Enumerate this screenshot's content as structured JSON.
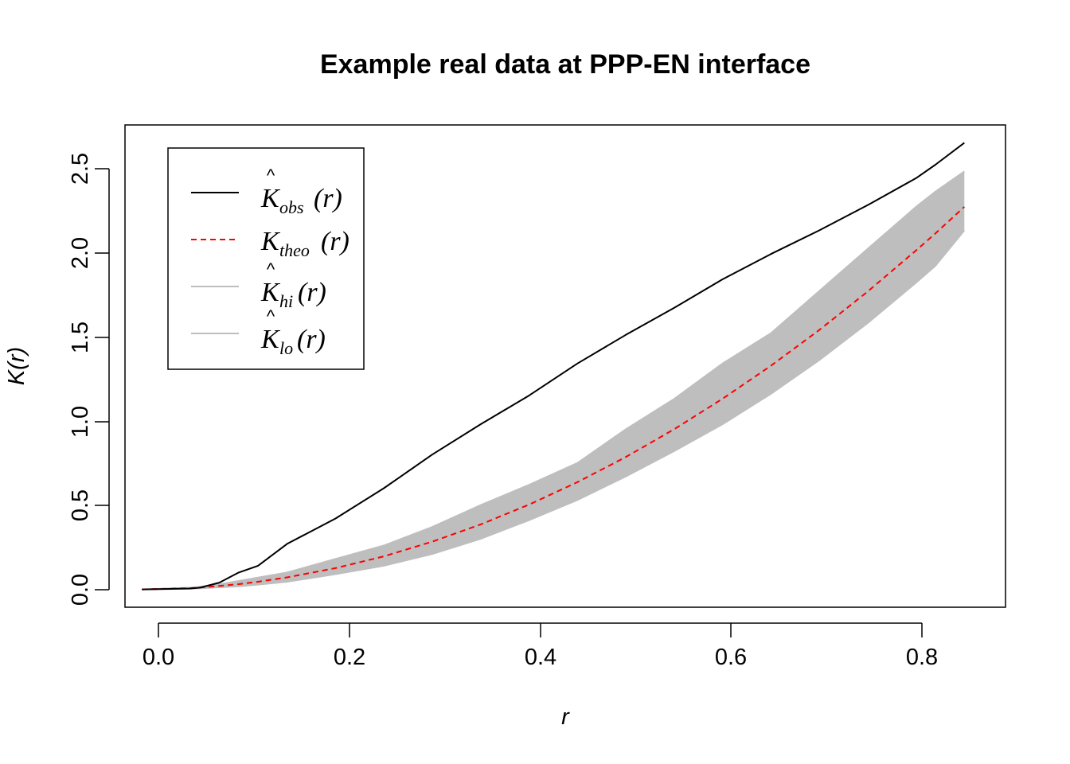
{
  "chart_data": {
    "type": "line",
    "title": "Example real data at PPP-EN interface",
    "xlabel": "r",
    "ylabel": "K(r)",
    "xlim": [
      -0.0175,
      0.8925
    ],
    "ylim": [
      -0.106,
      2.756
    ],
    "x_ticks": [
      "0.0",
      "0.2",
      "0.4",
      "0.6",
      "0.8"
    ],
    "y_ticks": [
      "0.0",
      "0.5",
      "1.0",
      "1.5",
      "2.0",
      "2.5"
    ],
    "legend_position": "top-left",
    "legend": [
      {
        "symbol": "K",
        "hat": true,
        "sub": "obs",
        "arg": "(r)",
        "color": "#000000",
        "dash": "solid"
      },
      {
        "symbol": "K",
        "hat": false,
        "sub": "theo",
        "arg": "(r)",
        "color": "#ff0000",
        "dash": "dashed"
      },
      {
        "symbol": "K",
        "hat": true,
        "sub": "hi",
        "arg": "(r)",
        "color": "#bebebe",
        "dash": "solid"
      },
      {
        "symbol": "K",
        "hat": true,
        "sub": "lo",
        "arg": "(r)",
        "color": "#bebebe",
        "dash": "solid"
      }
    ],
    "x": [
      0.0,
      0.05,
      0.06,
      0.08,
      0.1,
      0.12,
      0.15,
      0.2,
      0.25,
      0.3,
      0.35,
      0.4,
      0.45,
      0.5,
      0.55,
      0.6,
      0.65,
      0.7,
      0.75,
      0.8,
      0.82,
      0.85
    ],
    "series": [
      {
        "name": "obs",
        "color": "#000000",
        "values": [
          0.0,
          0.005,
          0.01,
          0.04,
          0.1,
          0.14,
          0.27,
          0.42,
          0.6,
          0.8,
          0.98,
          1.15,
          1.34,
          1.51,
          1.67,
          1.84,
          1.99,
          2.13,
          2.28,
          2.44,
          2.52,
          2.65
        ]
      },
      {
        "name": "theo",
        "color": "#ff0000",
        "values": [
          0.0,
          0.007,
          0.011,
          0.02,
          0.031,
          0.045,
          0.071,
          0.126,
          0.196,
          0.283,
          0.385,
          0.503,
          0.636,
          0.785,
          0.95,
          1.131,
          1.327,
          1.539,
          1.767,
          2.011,
          2.112,
          2.27
        ]
      },
      {
        "name": "hi",
        "color": "#bebebe",
        "values": [
          0.0,
          0.01,
          0.015,
          0.03,
          0.05,
          0.07,
          0.1,
          0.18,
          0.26,
          0.37,
          0.5,
          0.62,
          0.75,
          0.95,
          1.13,
          1.34,
          1.52,
          1.77,
          2.02,
          2.27,
          2.36,
          2.48
        ]
      },
      {
        "name": "lo",
        "color": "#bebebe",
        "values": [
          0.0,
          0.004,
          0.006,
          0.012,
          0.018,
          0.028,
          0.045,
          0.09,
          0.14,
          0.21,
          0.3,
          0.41,
          0.53,
          0.67,
          0.82,
          0.98,
          1.16,
          1.36,
          1.58,
          1.82,
          1.92,
          2.13
        ]
      }
    ]
  }
}
